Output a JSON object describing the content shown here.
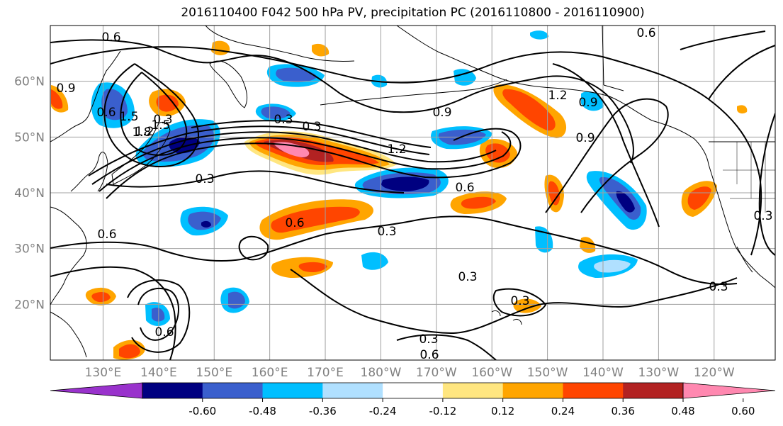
{
  "title": "2016110400 F042 500 hPa PV, precipitation PC (2016110800 - 2016110900)",
  "map": {
    "lat_labels": [
      "60°N",
      "50°N",
      "40°N",
      "30°N",
      "20°N"
    ],
    "lat_values": [
      60,
      50,
      40,
      30,
      20
    ],
    "lon_labels": [
      "130°E",
      "140°E",
      "150°E",
      "160°E",
      "170°E",
      "180°W",
      "170°W",
      "160°W",
      "150°W",
      "140°W",
      "130°W",
      "120°W"
    ],
    "lon_values": [
      130,
      140,
      150,
      160,
      170,
      180,
      190,
      200,
      210,
      220,
      230,
      240
    ],
    "lon_range": [
      120.5,
      251
    ],
    "lat_range": [
      10,
      70
    ],
    "grid": true,
    "contour_labels": [
      "0.6",
      "0.3",
      "0.9",
      "1.2",
      "1.5",
      "1.8",
      "0.6",
      "0.3",
      "0.3",
      "0.3",
      "0.3",
      "0.3",
      "0.6",
      "0.6",
      "0.9",
      "1.2",
      "0.9",
      "1.5",
      "0.6",
      "0.6",
      "0.3",
      "0.3",
      "0.6",
      "0.6",
      "0.3",
      "0.9",
      "1.2",
      "0.3"
    ]
  },
  "colorbar": {
    "ticks": [
      "-0.60",
      "-0.48",
      "-0.36",
      "-0.24",
      "-0.12",
      "0.12",
      "0.24",
      "0.36",
      "0.48",
      "0.60"
    ],
    "colors": [
      "#9932cc",
      "#000080",
      "#3a5fcd",
      "#00bfff",
      "#b0e0ff",
      "#ffffff",
      "#ffe680",
      "#ffa500",
      "#ff4500",
      "#b22222",
      "#ff88b0"
    ]
  }
}
